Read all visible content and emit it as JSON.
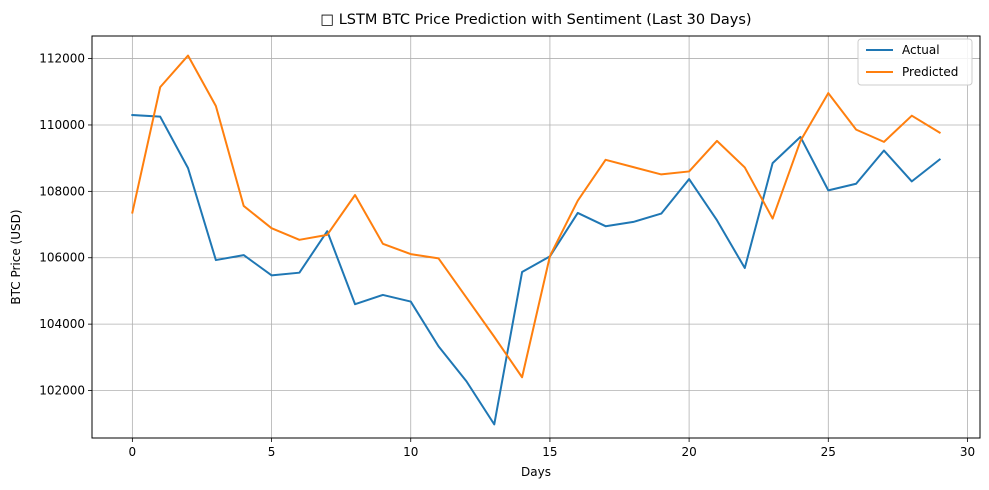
{
  "chart_data": {
    "type": "line",
    "title": "□ LSTM BTC Price Prediction with Sentiment (Last 30 Days)",
    "xlabel": "Days",
    "ylabel": "BTC Price (USD)",
    "x": [
      0,
      1,
      2,
      3,
      4,
      5,
      6,
      7,
      8,
      9,
      10,
      11,
      12,
      13,
      14,
      15,
      16,
      17,
      18,
      19,
      20,
      21,
      22,
      23,
      24,
      25,
      26,
      27,
      28,
      29
    ],
    "xlim": [
      -1.45,
      30.45
    ],
    "ylim": [
      100570,
      112680
    ],
    "xticks": [
      0,
      5,
      10,
      15,
      20,
      25,
      30
    ],
    "yticks": [
      102000,
      104000,
      106000,
      108000,
      110000,
      112000
    ],
    "grid": true,
    "legend_position": "top-right",
    "series": [
      {
        "name": "Actual",
        "color": "#1f77b4",
        "values": [
          110300,
          110250,
          108700,
          105930,
          106080,
          105470,
          105550,
          106800,
          104600,
          104880,
          104680,
          103330,
          102280,
          100980,
          105570,
          106040,
          107350,
          106950,
          107080,
          107330,
          108370,
          107130,
          105690,
          108850,
          109640,
          108030,
          108230,
          109230,
          108300,
          108960
        ]
      },
      {
        "name": "Predicted",
        "color": "#ff7f0e",
        "values": [
          107360,
          111140,
          112090,
          110570,
          107560,
          106890,
          106540,
          106690,
          107890,
          106420,
          106110,
          105980,
          104800,
          103620,
          102400,
          106050,
          107720,
          108950,
          108730,
          108510,
          108600,
          109520,
          108720,
          107180,
          109520,
          110960,
          109860,
          109490,
          110280,
          109770
        ]
      }
    ]
  }
}
